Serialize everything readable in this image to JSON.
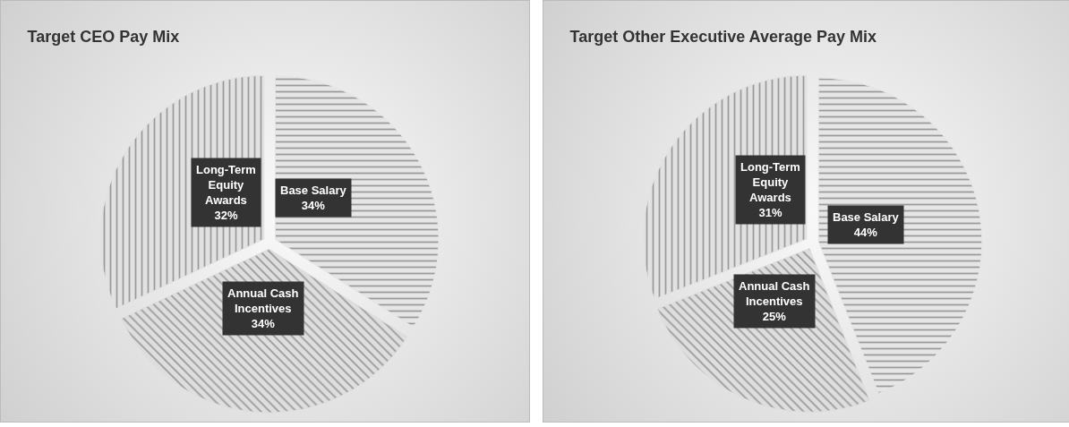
{
  "chart_data": [
    {
      "type": "pie",
      "title": "Target CEO Pay Mix",
      "categories": [
        "Base Salary",
        "Annual Cash Incentives",
        "Long-Term Equity Awards"
      ],
      "values": [
        34,
        34,
        32
      ],
      "value_labels": [
        "34%",
        "34%",
        "32%"
      ],
      "colors": [
        "#e6e6e6",
        "#dedede",
        "#e2e2e2"
      ],
      "legend": false
    },
    {
      "type": "pie",
      "title": "Target Other Executive Average Pay Mix",
      "categories": [
        "Base Salary",
        "Annual Cash Incentives",
        "Long-Term Equity Awards"
      ],
      "values": [
        44,
        25,
        31
      ],
      "value_labels": [
        "44%",
        "25%",
        "31%"
      ],
      "colors": [
        "#e6e6e6",
        "#dedede",
        "#e2e2e2"
      ],
      "legend": false
    }
  ]
}
